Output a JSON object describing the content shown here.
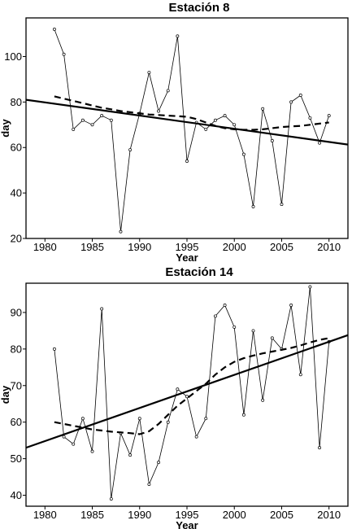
{
  "chart_data": [
    {
      "type": "line",
      "title": "Estación 8",
      "xlabel": "Year",
      "ylabel": "day",
      "xlim": [
        1978,
        2012
      ],
      "ylim": [
        20,
        117
      ],
      "xticks": [
        1980,
        1985,
        1990,
        1995,
        2000,
        2005,
        2010
      ],
      "yticks": [
        20,
        40,
        60,
        80,
        100
      ],
      "grid": false,
      "x": [
        1981,
        1982,
        1983,
        1984,
        1985,
        1986,
        1987,
        1988,
        1989,
        1990,
        1991,
        1992,
        1993,
        1994,
        1995,
        1996,
        1997,
        1998,
        1999,
        2000,
        2001,
        2002,
        2003,
        2004,
        2005,
        2006,
        2007,
        2008,
        2009,
        2010
      ],
      "series": [
        {
          "style": "observed",
          "values": [
            112,
            101,
            68,
            72,
            70,
            74,
            72,
            23,
            59,
            75,
            93,
            76,
            85,
            109,
            54,
            71,
            68,
            72,
            74,
            70,
            57,
            34,
            77,
            63,
            35,
            80,
            83,
            73,
            62,
            74
          ]
        },
        {
          "style": "linear-trend",
          "line": [
            [
              1978,
              81
            ],
            [
              2012,
              61.3
            ]
          ]
        },
        {
          "style": "smoothed",
          "values": [
            82.5,
            81.5,
            80.5,
            79.5,
            78.5,
            77.5,
            76.8,
            76,
            75.5,
            75,
            74.5,
            74.3,
            74,
            73.8,
            73.5,
            72.5,
            71,
            69.5,
            68.5,
            68,
            67.8,
            67.8,
            68,
            68.5,
            69,
            69.3,
            69.5,
            70,
            70.5,
            71
          ]
        }
      ]
    },
    {
      "type": "line",
      "title": "Estación 14",
      "xlabel": "Year",
      "ylabel": "day",
      "xlim": [
        1978,
        2012
      ],
      "ylim": [
        37,
        98
      ],
      "xticks": [
        1980,
        1985,
        1990,
        1995,
        2000,
        2005,
        2010
      ],
      "yticks": [
        40,
        50,
        60,
        70,
        80,
        90
      ],
      "grid": false,
      "x": [
        1981,
        1982,
        1983,
        1984,
        1985,
        1986,
        1987,
        1988,
        1989,
        1990,
        1991,
        1992,
        1993,
        1994,
        1995,
        1996,
        1997,
        1998,
        1999,
        2000,
        2001,
        2002,
        2003,
        2004,
        2005,
        2006,
        2007,
        2008,
        2009,
        2010
      ],
      "series": [
        {
          "style": "observed",
          "values": [
            80,
            56,
            54,
            61,
            52,
            91,
            39,
            57,
            51,
            61,
            43,
            49,
            60,
            69,
            67,
            56,
            61,
            89,
            92,
            86,
            62,
            85,
            66,
            83,
            80,
            92,
            73,
            97,
            53,
            82
          ]
        },
        {
          "style": "linear-trend",
          "line": [
            [
              1978,
              53
            ],
            [
              2012,
              83.8
            ]
          ]
        },
        {
          "style": "smoothed",
          "values": [
            60,
            59.5,
            59,
            58.5,
            58,
            57.7,
            57.4,
            57.2,
            57,
            56.7,
            57.5,
            59.5,
            62,
            64.5,
            66.5,
            68.5,
            70.5,
            73,
            75,
            76.5,
            77.5,
            78.2,
            78.8,
            79.3,
            79.8,
            80.3,
            81,
            81.8,
            82.5,
            83
          ]
        }
      ]
    }
  ]
}
